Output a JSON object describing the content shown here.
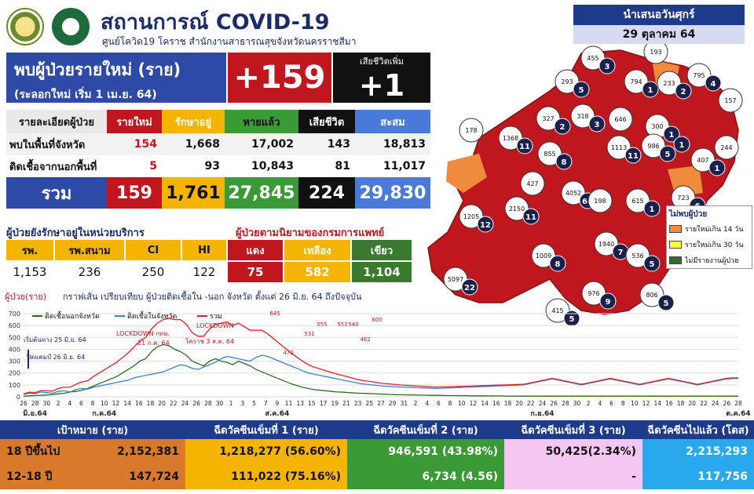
{
  "header": {
    "title": "สถานการณ์ COVID-19",
    "subtitle": "ศูนย์โควิด19 โคราช สำนักงานสาธารณสุขจังหวัดนครราชสีมา",
    "presented": "นำเสนอวันศุกร์",
    "date": "29 ตุลาคม 64"
  },
  "summary": {
    "new_title": "พบผู้ป่วยรายใหม่ (ราย)",
    "new_subtitle": "(ระลอกใหม่ เริ่ม 1 เม.ย. 64)",
    "new_value": "+159",
    "death_label": "เสียชีวิตเพิ่ม",
    "death_value": "+1"
  },
  "detail_table": {
    "headers": [
      "รายละเอียดผู้ป่วย",
      "รายใหม่",
      "รักษาอยู่",
      "หายแล้ว",
      "เสียชีวิต",
      "สะสม"
    ],
    "rows": [
      [
        "พบในพื้นที่จังหวัด",
        "154",
        "1,668",
        "17,002",
        "143",
        "18,813"
      ],
      [
        "ติดเชื้อจากนอกพื้นที่",
        "5",
        "93",
        "10,843",
        "81",
        "11,017"
      ]
    ],
    "total": [
      "รวม",
      "159",
      "1,761",
      "27,845",
      "224",
      "29,830"
    ]
  },
  "facility": {
    "title": "ผู้ป่วยยังรักษาอยู่ในหน่วยบริการ",
    "headers": [
      "รพ.",
      "รพ.สนาม",
      "CI",
      "HI"
    ],
    "values": [
      "1,153",
      "236",
      "250",
      "122"
    ]
  },
  "severity": {
    "title": "ผู้ป่วยตามนิยามของกรมการแพทย์",
    "headers": [
      "แดง",
      "เหลือง",
      "เขียว"
    ],
    "values": [
      "75",
      "582",
      "1,104"
    ]
  },
  "map": {
    "districts": [
      {
        "name": "แก้งสนามนาง",
        "n": "3",
        "c": "455"
      },
      {
        "name": "บัวลาย",
        "n": "",
        "c": "193"
      },
      {
        "name": "ประทาย",
        "n": "4",
        "c": "795"
      },
      {
        "name": "บ้านเหลื่อม",
        "n": "5",
        "c": "293"
      },
      {
        "name": "บัวใหญ่",
        "n": "1",
        "c": "794"
      },
      {
        "name": "สีดา",
        "n": "2",
        "c": "233"
      },
      {
        "name": "เมืองยาง",
        "n": "",
        "c": "157"
      },
      {
        "name": "พระทองคำ",
        "n": "2",
        "c": "327"
      },
      {
        "name": "คง",
        "n": "3",
        "c": "318"
      },
      {
        "name": "โนนแดง",
        "n": "",
        "c": "646"
      },
      {
        "name": "โนนไทย",
        "n": "1",
        "c": "300"
      },
      {
        "name": "ลำทะเมนชัย",
        "n": "1",
        "c": ""
      },
      {
        "name": "ขามสะแกแสง",
        "n": "",
        "c": "178"
      },
      {
        "name": "ด่านขุนทด",
        "n": "11",
        "c": "1368"
      },
      {
        "name": "โนนสูง",
        "n": "11",
        "c": "1113"
      },
      {
        "name": "ชุมพวง",
        "n": "1",
        "c": "407"
      },
      {
        "name": "เทพารักษ์",
        "n": "",
        "c": ""
      },
      {
        "name": "พิมาย",
        "n": "5",
        "c": "986"
      },
      {
        "name": "ห้วยแถลง",
        "n": "",
        "c": "244"
      },
      {
        "name": "เมืองนครราชสีมา",
        "n": "64",
        "c": "4052"
      },
      {
        "name": "จักราช",
        "n": "1",
        "c": "615"
      },
      {
        "name": "สีคิ้ว",
        "n": "12",
        "c": "1205"
      },
      {
        "name": "สูงเนิน",
        "n": "11",
        "c": "2150"
      },
      {
        "name": "ขามทะเลสอ",
        "n": "",
        "c": "427"
      },
      {
        "name": "เฉลิมพระเกียรติ",
        "n": "",
        "c": "198"
      },
      {
        "name": "โชคชัย",
        "n": "7",
        "c": "1940"
      },
      {
        "name": "ปักธงชัย",
        "n": "8",
        "c": "1009"
      },
      {
        "name": "หนองบุญมาก",
        "n": "5",
        "c": "536"
      },
      {
        "name": "ปากช่อง",
        "n": "22",
        "c": "5097"
      },
      {
        "name": "ครบุรี",
        "n": "9",
        "c": "976"
      },
      {
        "name": "วังน้ำเขียว",
        "n": "5",
        "c": "415"
      },
      {
        "name": "เสิงสาง",
        "n": "5",
        "c": "806"
      },
      {
        "name": "โนนแดง2",
        "n": "6",
        "c": "723"
      },
      {
        "name": "เมือง2",
        "n": "8",
        "c": "855"
      }
    ],
    "legend_title": "ไม่พบผู้ป่วย",
    "legend": [
      {
        "label": "รายใหม่เกิน 14 วัน",
        "color": "#f08a3c"
      },
      {
        "label": "รายใหม่เกิน 30 วัน",
        "color": "#ffff33"
      },
      {
        "label": "ไม่มีรายงานผู้ป่วย",
        "color": "#2f6b2f"
      }
    ]
  },
  "chart_data": {
    "type": "line",
    "title": "กราฟเส้น เปรียบเทียบ ผู้ป่วยติดเชื้อใน -นอก จังหวัด ตั้งแต่ 26 มิ.ย. 64 ถึงปัจจุบัน",
    "ylabel": "ผู้ป่วย(ราย)",
    "ylim": [
      0,
      700
    ],
    "yticks": [
      0,
      100,
      200,
      300,
      400,
      500,
      600,
      700
    ],
    "xticks": [
      "26",
      "28",
      "30",
      "2",
      "4",
      "6",
      "8",
      "10",
      "12",
      "14",
      "16",
      "18",
      "20",
      "22",
      "24",
      "26",
      "28",
      "30",
      "1",
      "3",
      "5",
      "7",
      "9",
      "11",
      "13",
      "15",
      "17",
      "19",
      "21",
      "23",
      "25",
      "27",
      "29",
      "31",
      "2",
      "4",
      "6",
      "8",
      "10",
      "12",
      "14",
      "16",
      "18",
      "20",
      "22",
      "24",
      "26",
      "28",
      "30",
      "2",
      "4",
      "6",
      "8",
      "10",
      "12",
      "14",
      "16",
      "18",
      "20",
      "22",
      "24",
      "26",
      "28"
    ],
    "month_labels": [
      "มิ.ย.64",
      "ก.ค.64",
      "ส.ค.64",
      "ก.ย.64",
      "ต.ค.64"
    ],
    "series": [
      {
        "name": "ติดเชื้อนอกจังหวัด",
        "color": "#2e6b1e",
        "values": [
          5,
          8,
          10,
          12,
          15,
          18,
          25,
          30,
          40,
          45,
          55,
          70,
          90,
          110,
          130,
          150,
          170,
          200,
          230,
          260,
          300,
          320,
          380,
          420,
          440,
          430,
          400,
          380,
          350,
          300,
          280,
          260,
          300,
          320,
          300,
          290,
          270,
          300,
          280,
          260,
          230,
          210,
          190,
          170,
          150,
          130,
          110,
          95,
          80,
          70,
          60,
          55,
          50,
          45,
          40,
          38,
          35,
          32,
          30,
          28,
          26,
          24,
          22,
          20,
          18,
          17,
          16,
          15,
          14,
          13,
          12,
          12,
          11,
          10,
          10,
          9,
          9,
          8,
          8,
          8,
          7,
          7,
          7,
          6,
          6,
          6,
          5,
          5,
          5,
          5,
          5,
          5,
          5,
          5,
          5,
          5,
          5,
          5,
          5,
          5,
          5,
          5,
          5,
          5,
          5,
          5,
          5,
          5,
          5,
          5,
          5,
          5,
          5,
          5,
          5,
          5,
          5,
          5,
          5,
          5,
          5,
          5,
          5,
          5
        ]
      },
      {
        "name": "ติดเชื้อในจังหวัด",
        "color": "#3b7fd1",
        "values": [
          20,
          30,
          25,
          40,
          35,
          30,
          45,
          50,
          40,
          60,
          70,
          65,
          80,
          90,
          100,
          110,
          120,
          130,
          140,
          160,
          170,
          180,
          190,
          200,
          210,
          230,
          250,
          270,
          260,
          240,
          230,
          250,
          270,
          290,
          320,
          340,
          330,
          320,
          310,
          300,
          330,
          350,
          340,
          320,
          300,
          280,
          260,
          240,
          220,
          200,
          190,
          180,
          170,
          160,
          150,
          140,
          130,
          120,
          110,
          105,
          100,
          95,
          90,
          88,
          85,
          82,
          80,
          78,
          76,
          74,
          72,
          70,
          72,
          74,
          76,
          78,
          80,
          82,
          84,
          86,
          88,
          90,
          92,
          94,
          96,
          98,
          100,
          110,
          120,
          130,
          140,
          150,
          140,
          130,
          120,
          110,
          100,
          110,
          120,
          130,
          140,
          150,
          140,
          130,
          120,
          110,
          100,
          110,
          120,
          130,
          140,
          150,
          140,
          130,
          120,
          110,
          100,
          110,
          120,
          130,
          140,
          150,
          154,
          154
        ]
      },
      {
        "name": "รวม",
        "color": "#e02020",
        "values": [
          25,
          38,
          35,
          52,
          50,
          48,
          70,
          80,
          80,
          105,
          125,
          135,
          170,
          200,
          230,
          260,
          290,
          330,
          370,
          420,
          470,
          500,
          570,
          620,
          650,
          660,
          650,
          650,
          610,
          540,
          510,
          510,
          570,
          610,
          620,
          630,
          600,
          620,
          590,
          560,
          560,
          560,
          530,
          490,
          450,
          410,
          370,
          335,
          300,
          270,
          250,
          235,
          220,
          205,
          190,
          178,
          165,
          152,
          140,
          133,
          126,
          119,
          112,
          108,
          103,
          99,
          96,
          93,
          90,
          87,
          84,
          82,
          83,
          84,
          86,
          87,
          89,
          90,
          92,
          94,
          95,
          97,
          99,
          100,
          102,
          104,
          105,
          115,
          125,
          135,
          145,
          155,
          145,
          135,
          125,
          115,
          105,
          115,
          125,
          135,
          145,
          155,
          145,
          135,
          125,
          115,
          105,
          115,
          125,
          135,
          145,
          155,
          145,
          135,
          125,
          115,
          105,
          115,
          125,
          135,
          145,
          155,
          159,
          159
        ]
      }
    ],
    "annotations": [
      {
        "text": "เริ่มต้นทาง 25 มิ.ย. 64"
      },
      {
        "text": "ปิดแคมป์ 26 มิ.ย. 64"
      },
      {
        "text": "LOCKDOWN กทม."
      },
      {
        "text": "21 ก.ค. 64"
      },
      {
        "text": "LOCKDOWN"
      },
      {
        "text": "โคราช 3 ส.ค. 64"
      }
    ],
    "peak_labels": [
      "645",
      "600",
      "555",
      "552",
      "540",
      "531",
      "470",
      "462"
    ]
  },
  "vaccine": {
    "headers": [
      "เป้าหมาย (ราย)",
      "ฉีดวัคซีนเข็มที่ 1 (ราย)",
      "ฉีดวัคซีนเข็มที่ 2 (ราย)",
      "ฉีดวัคซีนเข็มที่ 3 (ราย)",
      "ฉีดวัคซีนไปแล้ว (โดส)"
    ],
    "rows": [
      [
        "18 ปีขึ้นไป",
        "2,152,381",
        "1,218,277 (56.60%)",
        "946,591 (43.98%)",
        "50,425(2.34%)",
        "2,215,293"
      ],
      [
        "12-18 ปี",
        "147,724",
        "111,022 (75.16%)",
        "6,734 (4.56)",
        "-",
        "117,756"
      ]
    ]
  }
}
